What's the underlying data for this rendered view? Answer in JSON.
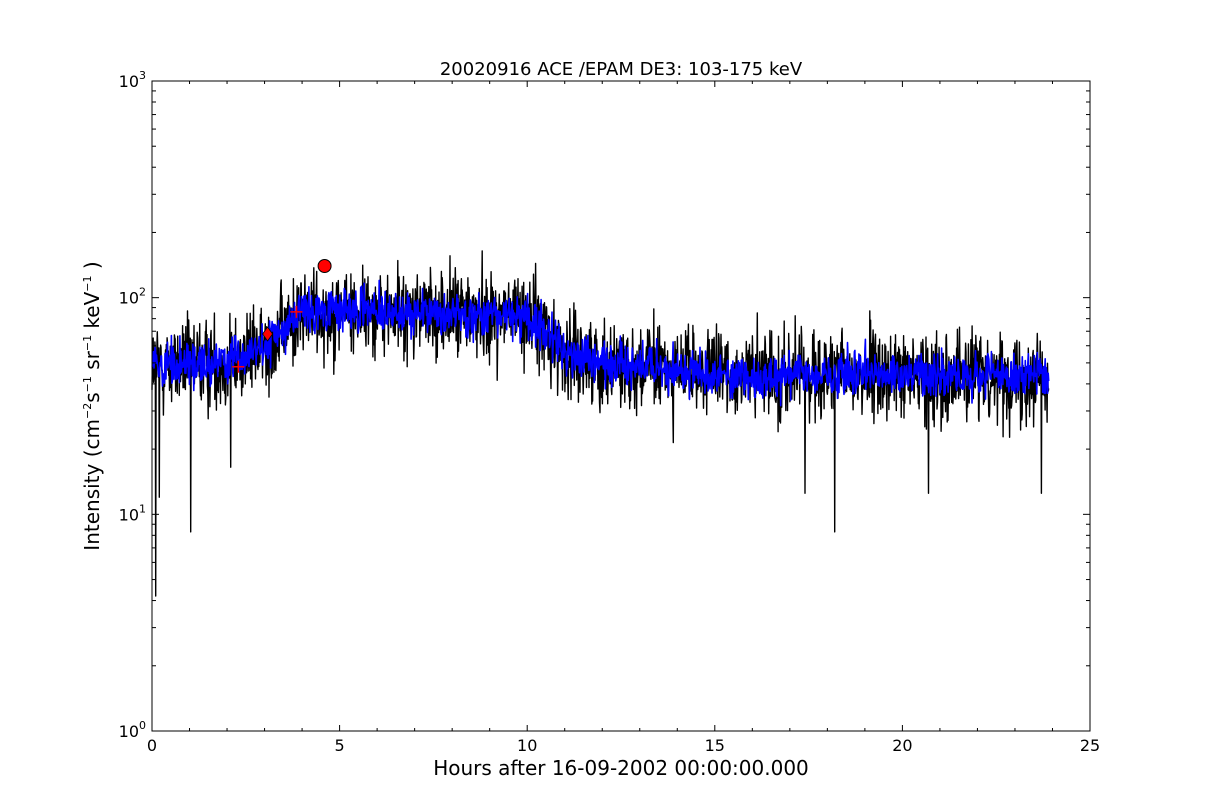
{
  "chart_data": {
    "type": "line",
    "title": "20020916 ACE /EPAM DE3: 103-175 keV",
    "xlabel": "Hours after 16-09-2002 00:00:00.000",
    "ylabel": "Intensity (cm$^{-2}$s$^{-1}$sr$^{-1}$keV$^{-1}$)",
    "ylabel_parts": {
      "prefix": "Intensity (cm",
      "e1": "−2",
      "s": "s",
      "e2": "−1",
      "sr": " sr",
      "e3": "−1",
      "kev": " keV",
      "e4": "−1",
      "suffix": " )"
    },
    "xlim": [
      0,
      25
    ],
    "ylim": [
      1,
      1000
    ],
    "yscale": "log",
    "x_ticks": [
      0,
      5,
      10,
      15,
      20,
      25
    ],
    "x_tick_labels": [
      "0",
      "5",
      "10",
      "15",
      "20",
      "25"
    ],
    "y_ticks": [
      1,
      10,
      100,
      1000
    ],
    "y_tick_base": "10",
    "y_tick_exponents": [
      "0",
      "1",
      "2",
      "3"
    ],
    "grid": false,
    "series": [
      {
        "color": "#000000",
        "x_start": 0.0,
        "x_end": 23.9,
        "envelope": [
          [
            0,
            48
          ],
          [
            1,
            50
          ],
          [
            2,
            50
          ],
          [
            3,
            58
          ],
          [
            4,
            85
          ],
          [
            5,
            88
          ],
          [
            6,
            86
          ],
          [
            7,
            85
          ],
          [
            8,
            85
          ],
          [
            9,
            84
          ],
          [
            10,
            82
          ],
          [
            10.5,
            70
          ],
          [
            11,
            55
          ],
          [
            12,
            50
          ],
          [
            13,
            48
          ],
          [
            14,
            46
          ],
          [
            15,
            45
          ],
          [
            16,
            44
          ],
          [
            17,
            44
          ],
          [
            18,
            44
          ],
          [
            19,
            44
          ],
          [
            20,
            44
          ],
          [
            21,
            44
          ],
          [
            22,
            44
          ],
          [
            23,
            44
          ],
          [
            23.9,
            44
          ]
        ],
        "spread_decades": 0.14,
        "dips": [
          [
            0.1,
            4.2
          ],
          [
            0.2,
            12
          ],
          [
            1.03,
            8.3
          ],
          [
            2.1,
            16.5
          ],
          [
            6.8,
            48
          ],
          [
            17.4,
            12.5
          ],
          [
            18.2,
            8.3
          ],
          [
            20.7,
            12.5
          ],
          [
            23.7,
            12.5
          ]
        ]
      },
      {
        "color": "#0000ff",
        "x_start": 0.0,
        "x_end": 23.9,
        "envelope": [
          [
            0,
            48
          ],
          [
            1,
            50
          ],
          [
            2,
            50
          ],
          [
            3,
            58
          ],
          [
            4,
            85
          ],
          [
            5,
            88
          ],
          [
            6,
            86
          ],
          [
            7,
            85
          ],
          [
            8,
            85
          ],
          [
            9,
            84
          ],
          [
            10,
            82
          ],
          [
            10.5,
            70
          ],
          [
            11,
            55
          ],
          [
            12,
            50
          ],
          [
            13,
            48
          ],
          [
            14,
            46
          ],
          [
            15,
            45
          ],
          [
            16,
            44
          ],
          [
            17,
            44
          ],
          [
            18,
            44
          ],
          [
            19,
            44
          ],
          [
            20,
            44
          ],
          [
            21,
            44
          ],
          [
            22,
            44
          ],
          [
            23,
            44
          ],
          [
            23.9,
            44
          ]
        ],
        "spread_decades": 0.07
      }
    ],
    "markers": [
      {
        "shape": "plus",
        "x": 2.3,
        "y": 48,
        "color": "#ff0000"
      },
      {
        "shape": "diamond",
        "x": 3.08,
        "y": 68,
        "color": "#ff0000"
      },
      {
        "shape": "plus",
        "x": 3.85,
        "y": 86,
        "color": "#ff0000"
      },
      {
        "shape": "circle",
        "x": 4.6,
        "y": 140,
        "color": "#ff0000"
      }
    ]
  }
}
